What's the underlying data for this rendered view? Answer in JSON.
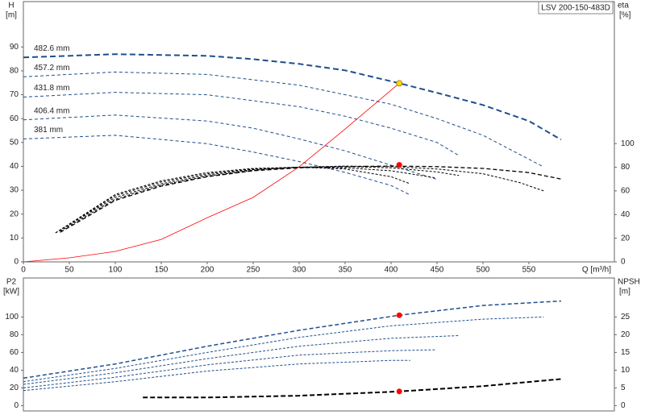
{
  "header": {
    "model": "LSV 200-150-483D"
  },
  "chart_data": [
    {
      "type": "line",
      "y_label": "H",
      "y_unit": "[m]",
      "y2_label": "eta",
      "y2_unit": "[%]",
      "x_label": "Q [m³/h]",
      "xlim": [
        0,
        643
      ],
      "ylim": [
        0,
        109
      ],
      "y2lim": [
        0,
        220
      ],
      "xticks": [
        0,
        50,
        100,
        150,
        200,
        250,
        300,
        350,
        400,
        450,
        500,
        550
      ],
      "yticks": [
        0,
        10,
        20,
        30,
        40,
        50,
        60,
        70,
        80,
        90
      ],
      "y2ticks": [
        0,
        20,
        40,
        60,
        80,
        100
      ],
      "series": [
        {
          "name": "482.6 mm",
          "color": "#1f4e8c",
          "dash": "7,4",
          "width": 2,
          "x": [
            0,
            100,
            200,
            250,
            300,
            350,
            409,
            450,
            500,
            550,
            585
          ],
          "values": [
            85.6,
            87,
            86.3,
            84.9,
            82.9,
            80.2,
            74.8,
            70.8,
            65.7,
            59,
            51.2
          ]
        },
        {
          "name": "457.2 mm",
          "color": "#1f4e8c",
          "dash": "4,3",
          "width": 1,
          "x": [
            0,
            100,
            200,
            300,
            400,
            450,
            500,
            566
          ],
          "values": [
            77.5,
            79.5,
            78.5,
            74,
            66,
            60,
            53,
            39.8
          ]
        },
        {
          "name": "431.8 mm",
          "color": "#1f4e8c",
          "dash": "4,3",
          "width": 1,
          "x": [
            0,
            100,
            200,
            300,
            350,
            400,
            450,
            474
          ],
          "values": [
            69,
            71,
            70,
            65,
            61,
            56,
            50,
            44.5
          ]
        },
        {
          "name": "406.4 mm",
          "color": "#1f4e8c",
          "dash": "4,3",
          "width": 1,
          "x": [
            0,
            100,
            200,
            250,
            300,
            350,
            400,
            449
          ],
          "values": [
            59.5,
            61.5,
            59,
            56,
            51.5,
            46.5,
            40.5,
            34.7
          ]
        },
        {
          "name": "381 mm",
          "color": "#1f4e8c",
          "dash": "4,3",
          "width": 1,
          "x": [
            0,
            100,
            200,
            250,
            300,
            350,
            400,
            421
          ],
          "values": [
            51.5,
            53,
            49.5,
            46,
            42,
            37.5,
            32,
            28
          ]
        },
        {
          "color": "#000000",
          "dash": "5,3",
          "width": 1.3,
          "axis": "y2",
          "x": [
            40,
            100,
            150,
            200,
            250,
            300,
            350,
            400,
            450,
            500,
            550,
            585
          ],
          "values": [
            25,
            52,
            64,
            72,
            77,
            79.5,
            80.5,
            81,
            80.5,
            79,
            75.5,
            70
          ]
        },
        {
          "color": "#000000",
          "dash": "3,2",
          "width": 1,
          "axis": "y2",
          "x": [
            40,
            100,
            150,
            200,
            250,
            300,
            350,
            400,
            450,
            500,
            540,
            566
          ],
          "values": [
            26,
            53,
            65,
            72.5,
            77.5,
            80,
            81,
            80.5,
            78.5,
            74.5,
            67,
            60
          ]
        },
        {
          "color": "#000000",
          "dash": "3,2",
          "width": 1,
          "axis": "y2",
          "x": [
            35,
            100,
            150,
            200,
            250,
            300,
            350,
            400,
            450,
            474
          ],
          "values": [
            24.5,
            54.5,
            66,
            73.5,
            78,
            80,
            80.5,
            79.5,
            76,
            73
          ]
        },
        {
          "color": "#000000",
          "dash": "3,2",
          "width": 1,
          "axis": "y2",
          "x": [
            35,
            100,
            150,
            200,
            250,
            300,
            350,
            400,
            449
          ],
          "values": [
            24.5,
            56,
            67.5,
            74.5,
            78.5,
            80,
            79.5,
            77,
            71
          ]
        },
        {
          "color": "#000000",
          "dash": "3,2",
          "width": 1,
          "axis": "y2",
          "x": [
            35,
            100,
            150,
            200,
            250,
            300,
            350,
            400,
            421
          ],
          "values": [
            24.5,
            57,
            68.5,
            75.5,
            79,
            80,
            78.5,
            72,
            66
          ]
        },
        {
          "color": "#ff0000",
          "width": 0.8,
          "x": [
            0,
            50,
            100,
            150,
            200,
            250,
            300,
            350,
            409
          ],
          "values": [
            0,
            1.7,
            4.4,
            9.4,
            18.5,
            27,
            39.8,
            55.6,
            74.8
          ]
        }
      ],
      "points": [
        {
          "x": 409,
          "value": 74.8,
          "color": "#ffd700"
        },
        {
          "x": 409,
          "value": 82,
          "axis": "y2",
          "color": "#ff0000"
        }
      ]
    },
    {
      "type": "line",
      "y_label": "P2",
      "y_unit": "[kW]",
      "y2_label": "NPSH",
      "y2_unit": "[m]",
      "xlim": [
        0,
        643
      ],
      "ylim": [
        -6,
        144
      ],
      "y2lim": [
        -1.5,
        36
      ],
      "yticks": [
        0,
        20,
        40,
        60,
        80,
        100
      ],
      "y2ticks": [
        0,
        5,
        10,
        15,
        20,
        25
      ],
      "series": [
        {
          "color": "#1f4e8c",
          "dash": "5,3",
          "width": 1.5,
          "x": [
            0,
            100,
            200,
            300,
            409,
            500,
            585
          ],
          "values": [
            31,
            47,
            67,
            85,
            102,
            113,
            118
          ]
        },
        {
          "color": "#1f4e8c",
          "dash": "3,2",
          "width": 1,
          "x": [
            0,
            100,
            200,
            300,
            400,
            500,
            566
          ],
          "values": [
            27,
            42,
            60,
            77,
            90,
            97.5,
            100
          ]
        },
        {
          "color": "#1f4e8c",
          "dash": "3,2",
          "width": 1,
          "x": [
            0,
            100,
            200,
            300,
            400,
            474
          ],
          "values": [
            24,
            37,
            53,
            67,
            76,
            79
          ]
        },
        {
          "color": "#1f4e8c",
          "dash": "3,2",
          "width": 1,
          "x": [
            0,
            100,
            200,
            300,
            400,
            449
          ],
          "values": [
            20,
            32,
            46,
            57,
            62,
            63
          ]
        },
        {
          "color": "#1f4e8c",
          "dash": "3,2",
          "width": 1,
          "x": [
            0,
            100,
            200,
            300,
            400,
            421
          ],
          "values": [
            17,
            27,
            39,
            47,
            51,
            51
          ]
        },
        {
          "color": "#000000",
          "dash": "6,3",
          "width": 2,
          "axis": "y2",
          "x": [
            130,
            200,
            300,
            409,
            500,
            585
          ],
          "values": [
            2.3,
            2.3,
            2.8,
            4,
            5.5,
            7.5
          ]
        }
      ],
      "points": [
        {
          "x": 409,
          "value": 102,
          "color": "#ff0000"
        },
        {
          "x": 409,
          "value": 4,
          "axis": "y2",
          "color": "#ff0000"
        }
      ]
    }
  ]
}
